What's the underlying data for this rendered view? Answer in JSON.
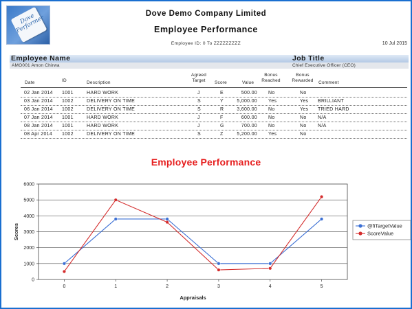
{
  "header": {
    "logo_text": "Dove Performer",
    "company": "Dove Demo Company Limited",
    "title": "Employee Performance",
    "id_range": "Employee ID: 0 To ZZZZZZZZZ",
    "print_date": "10 Jul 2015"
  },
  "employee": {
    "name_label": "Employee Name",
    "title_label": "Job Title",
    "name": "AMO001 Amon Chirwa",
    "job_title": "Chief Executive Officer (CEO)"
  },
  "table": {
    "headers": {
      "date": "Date",
      "id": "ID",
      "description": "Description",
      "agreed_1": "Agreed",
      "agreed_2": "Target",
      "score": "Score",
      "value": "Value",
      "bonus_reached_1": "Bonus",
      "bonus_reached_2": "Reached",
      "bonus_rewarded_1": "Bonus",
      "bonus_rewarded_2": "Rewarded",
      "comment": "Comment"
    },
    "rows": [
      {
        "date": "02 Jan 2014",
        "id": "1001",
        "description": "HARD WORK",
        "target": "J",
        "score": "E",
        "value": "500.00",
        "reached": "No",
        "rewarded": "No",
        "comment": ""
      },
      {
        "date": "03 Jan 2014",
        "id": "1002",
        "description": "DELIVERY ON TIME",
        "target": "S",
        "score": "Y",
        "value": "5,000.00",
        "reached": "Yes",
        "rewarded": "Yes",
        "comment": "BRILLIANT"
      },
      {
        "date": "06 Jan 2014",
        "id": "1002",
        "description": "DELIVERY ON TIME",
        "target": "S",
        "score": "R",
        "value": "3,600.00",
        "reached": "No",
        "rewarded": "Yes",
        "comment": "TRIED HARD"
      },
      {
        "date": "07 Jan 2014",
        "id": "1001",
        "description": "HARD WORK",
        "target": "J",
        "score": "F",
        "value": "600.00",
        "reached": "No",
        "rewarded": "No",
        "comment": "N/A"
      },
      {
        "date": "08 Jan 2014",
        "id": "1001",
        "description": "HARD WORK",
        "target": "J",
        "score": "G",
        "value": "700.00",
        "reached": "No",
        "rewarded": "No",
        "comment": "N/A"
      },
      {
        "date": "08 Apr 2014",
        "id": "1002",
        "description": "DELIVERY ON TIME",
        "target": "S",
        "score": "Z",
        "value": "5,200.00",
        "reached": "Yes",
        "rewarded": "No",
        "comment": ""
      }
    ]
  },
  "chart_data": {
    "type": "line",
    "title": "Employee Performance",
    "xlabel": "Appraisals",
    "ylabel": "Scores",
    "x": [
      0,
      1,
      2,
      3,
      4,
      5
    ],
    "xlim": [
      -0.5,
      5.5
    ],
    "ylim": [
      0,
      6000
    ],
    "yticks": [
      0,
      1000,
      2000,
      3000,
      4000,
      5000,
      6000
    ],
    "yticks_labels": [
      "0",
      "1000",
      "2000",
      "3000",
      "4000",
      "5000",
      "6000"
    ],
    "grid": true,
    "legend": "right",
    "series": [
      {
        "name": "@fiTargetValue",
        "color": "#3b6fd4",
        "values": [
          1000,
          3800,
          3800,
          1000,
          1000,
          3800
        ]
      },
      {
        "name": "ScoreValue",
        "color": "#d42c2c",
        "values": [
          500,
          5000,
          3600,
          600,
          700,
          5200
        ]
      }
    ]
  }
}
